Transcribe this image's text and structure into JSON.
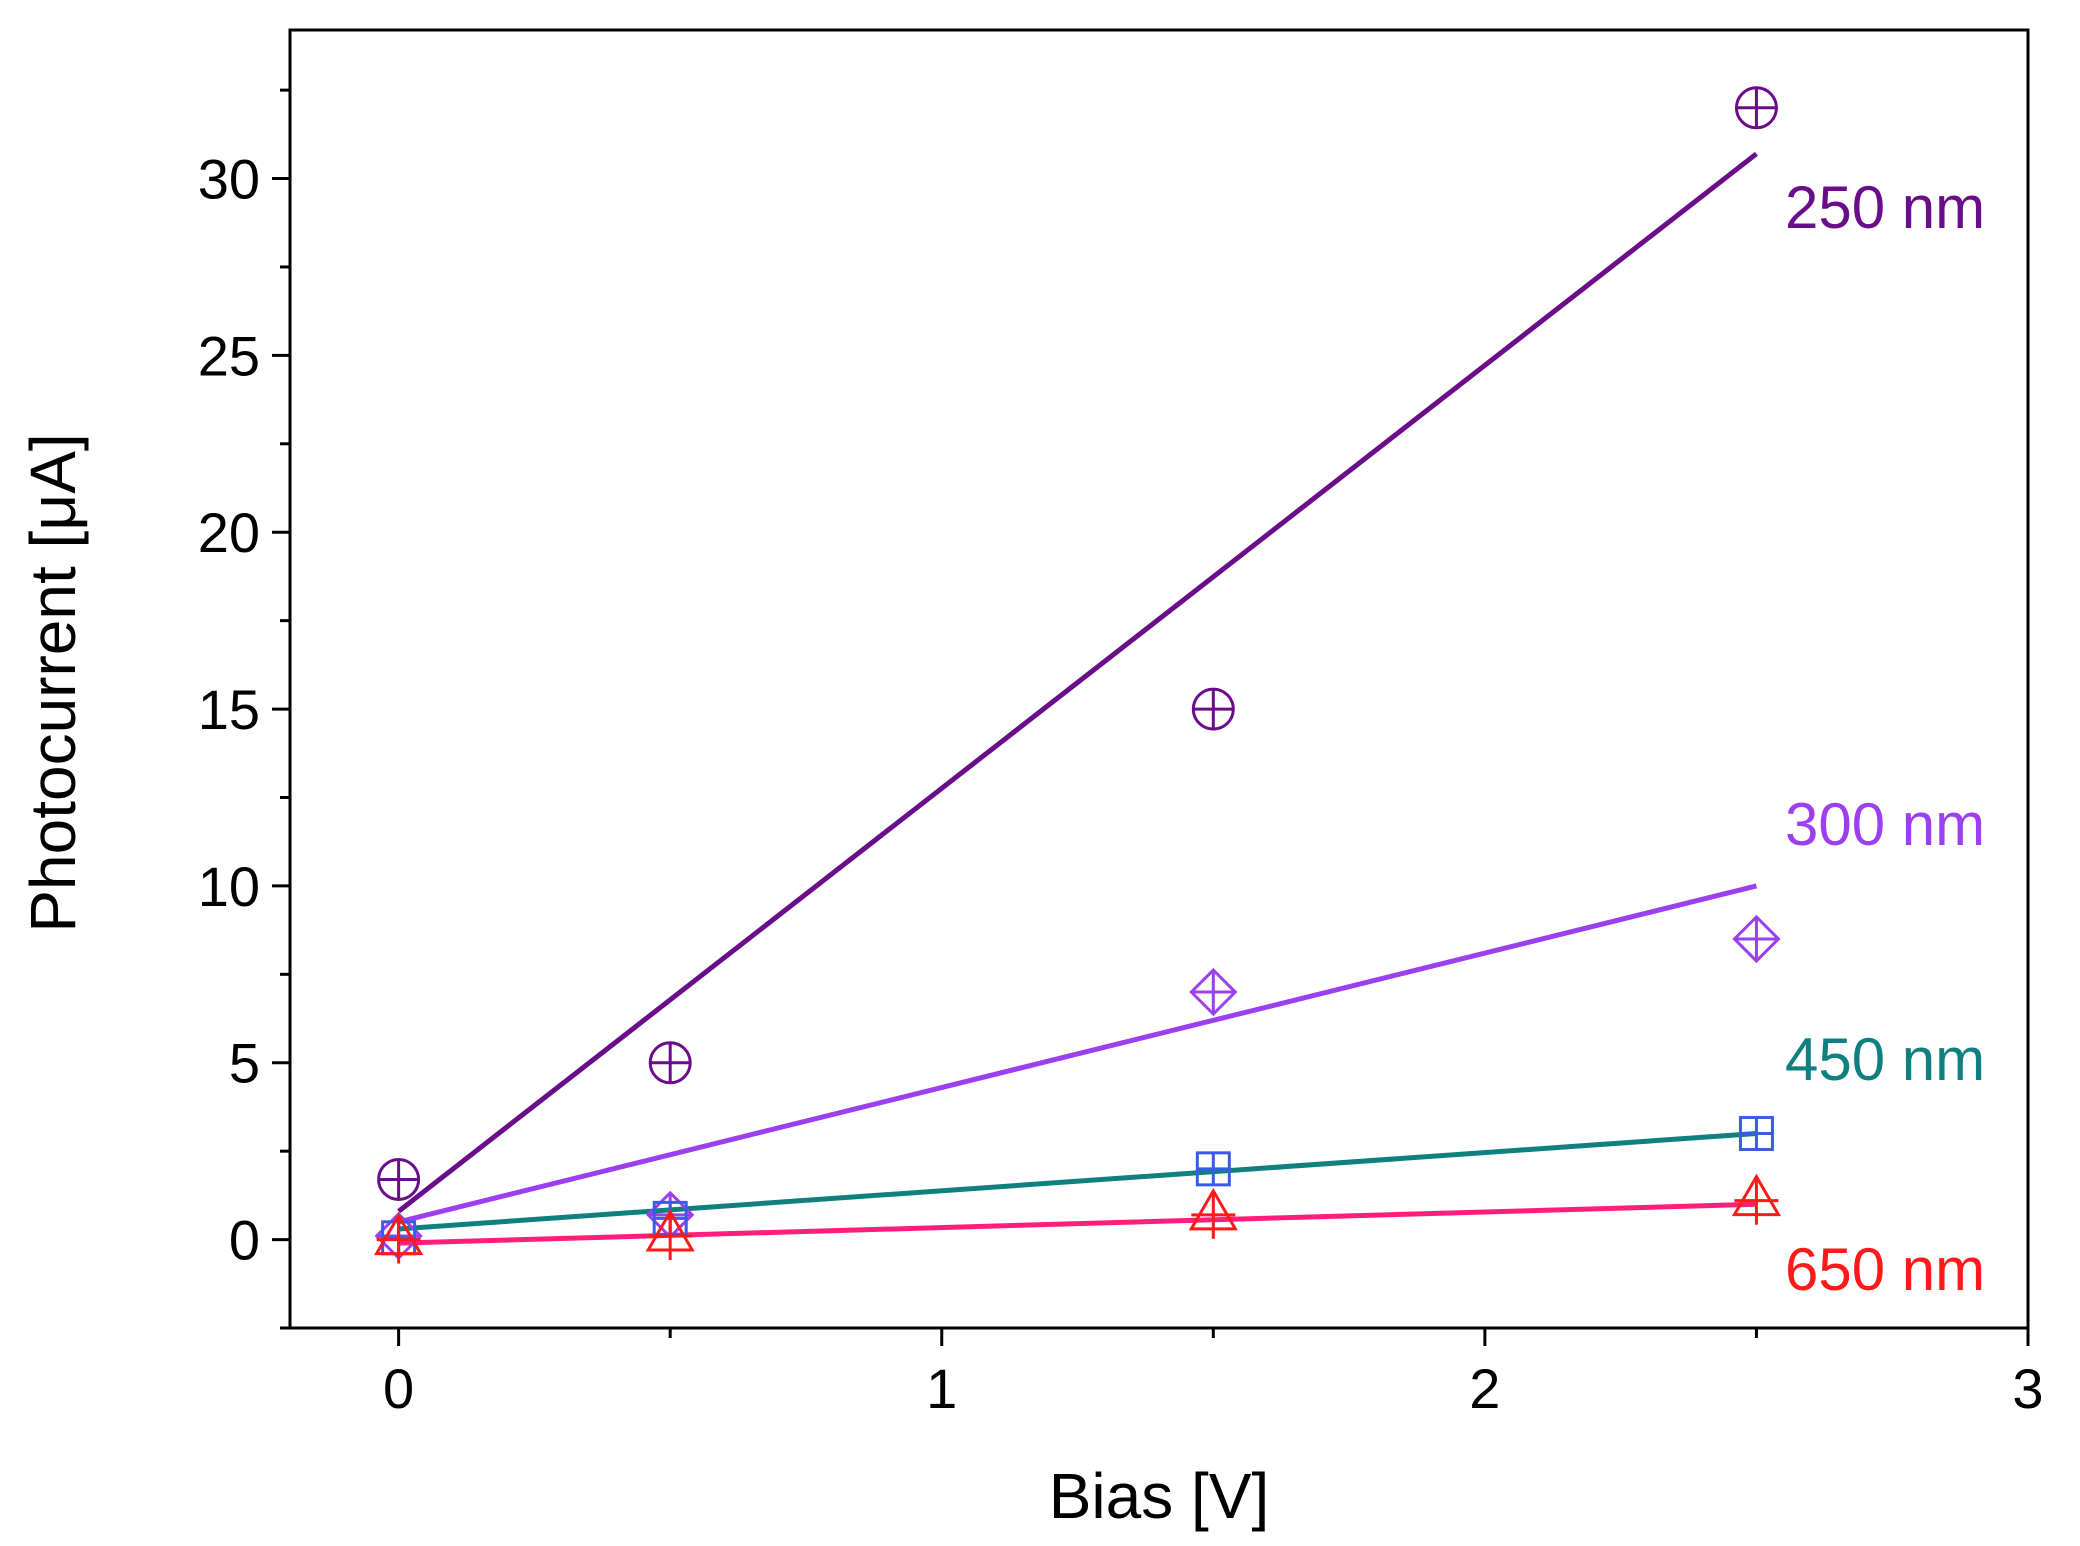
{
  "chart_data": {
    "type": "scatter",
    "title": "",
    "xlabel": "Bias [V]",
    "ylabel": "Photocurrent [μA]",
    "xlim": [
      -0.2,
      3.0
    ],
    "ylim": [
      -2.5,
      34.2
    ],
    "xticks": [
      0,
      1,
      2,
      3
    ],
    "yticks": [
      0,
      5,
      10,
      15,
      20,
      25,
      30
    ],
    "x_minor_step": 0.5,
    "y_minor_step": 2.5,
    "grid": false,
    "series": [
      {
        "name": "250 nm",
        "label": "250 nm",
        "color": "#6a0d8a",
        "marker": "circle-plus",
        "x": [
          0,
          0.5,
          1.5,
          2.5
        ],
        "values": [
          1.7,
          5.0,
          15.0,
          32.0
        ],
        "fit": {
          "x": [
            0,
            2.5
          ],
          "y": [
            0.8,
            30.7
          ]
        }
      },
      {
        "name": "300 nm",
        "label": "300 nm",
        "color": "#9b3ff0",
        "marker": "diamond-plus",
        "x": [
          0,
          0.5,
          1.5,
          2.5
        ],
        "values": [
          0.1,
          0.7,
          7.0,
          8.5
        ],
        "fit": {
          "x": [
            0,
            2.5
          ],
          "y": [
            0.5,
            10.0
          ]
        }
      },
      {
        "name": "450 nm",
        "label": "450 nm",
        "color": "#0f7f7f",
        "marker": "square-plus",
        "marker_color": "#3a5be8",
        "x": [
          0,
          0.5,
          1.5,
          2.5
        ],
        "values": [
          0.05,
          0.6,
          2.0,
          3.0
        ],
        "fit": {
          "x": [
            0,
            2.5
          ],
          "y": [
            0.3,
            3.0
          ]
        }
      },
      {
        "name": "650 nm",
        "label": "650 nm",
        "color": "#ff1a1a",
        "marker": "triangle-plus",
        "line_color": "#ff1f7a",
        "x": [
          0,
          0.5,
          1.5,
          2.5
        ],
        "values": [
          0.0,
          0.1,
          0.7,
          1.1
        ],
        "fit": {
          "x": [
            0,
            2.5
          ],
          "y": [
            -0.1,
            1.0
          ]
        }
      }
    ]
  }
}
